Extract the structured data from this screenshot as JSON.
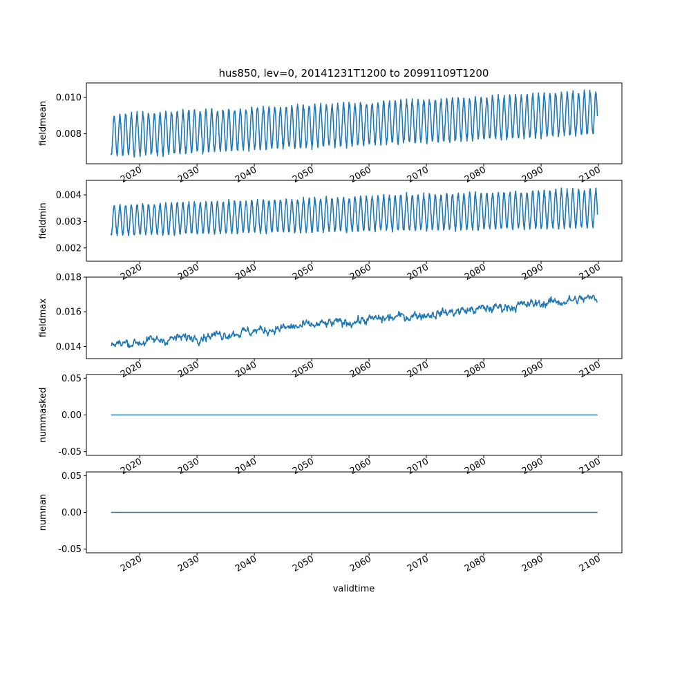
{
  "title": "hus850, lev=0, 20141231T1200 to 20991109T1200",
  "xlabel": "validtime",
  "colors": {
    "line": "#1f77b4",
    "axes": "#000000",
    "background": "#ffffff"
  },
  "chart_data": [
    {
      "type": "line",
      "ylabel": "fieldmean",
      "xlim": [
        2010.7,
        2104.1
      ],
      "ylim": [
        0.00635,
        0.0108
      ],
      "yticks": [
        "0.008",
        "0.010"
      ],
      "ytick_values": [
        0.008,
        0.01
      ],
      "xticks": [
        "2020",
        "2030",
        "2040",
        "2050",
        "2060",
        "2070",
        "2080",
        "2090",
        "2100"
      ],
      "x_range": [
        2015.0,
        2099.85
      ],
      "trend_start_low": 0.0068,
      "trend_end_low": 0.008,
      "trend_start_high": 0.009,
      "trend_end_high": 0.0103,
      "seasonal_cycle": "annual",
      "grid": false
    },
    {
      "type": "line",
      "ylabel": "fieldmin",
      "xlim": [
        2010.7,
        2104.1
      ],
      "ylim": [
        0.0015,
        0.00455
      ],
      "yticks": [
        "0.002",
        "0.003",
        "0.004"
      ],
      "ytick_values": [
        0.002,
        0.003,
        0.004
      ],
      "xticks": [
        "2020",
        "2030",
        "2040",
        "2050",
        "2060",
        "2070",
        "2080",
        "2090",
        "2100"
      ],
      "x_range": [
        2015.0,
        2099.85
      ],
      "trend_start_low": 0.0025,
      "trend_end_low": 0.0028,
      "trend_start_high": 0.0036,
      "trend_end_high": 0.0042,
      "seasonal_cycle": "annual",
      "grid": false
    },
    {
      "type": "line",
      "ylabel": "fieldmax",
      "xlim": [
        2010.7,
        2104.1
      ],
      "ylim": [
        0.0133,
        0.018
      ],
      "yticks": [
        "0.014",
        "0.016",
        "0.018"
      ],
      "ytick_values": [
        0.014,
        0.016,
        0.018
      ],
      "xticks": [
        "2020",
        "2030",
        "2040",
        "2050",
        "2060",
        "2070",
        "2080",
        "2090",
        "2100"
      ],
      "x_range": [
        2015.0,
        2099.85
      ],
      "trend_start": 0.0141,
      "trend_end": 0.0168,
      "grid": false
    },
    {
      "type": "line",
      "ylabel": "nummasked",
      "xlim": [
        2010.7,
        2104.1
      ],
      "ylim": [
        -0.055,
        0.055
      ],
      "yticks": [
        "0.05",
        "0.00",
        "-0.05"
      ],
      "ytick_values": [
        0.05,
        0.0,
        -0.05
      ],
      "xticks": [
        "2020",
        "2030",
        "2040",
        "2050",
        "2060",
        "2070",
        "2080",
        "2090",
        "2100"
      ],
      "x": [
        2015.0,
        2099.85
      ],
      "y": [
        0.0,
        0.0
      ],
      "grid": false
    },
    {
      "type": "line",
      "ylabel": "numnan",
      "xlim": [
        2010.7,
        2104.1
      ],
      "ylim": [
        -0.055,
        0.055
      ],
      "yticks": [
        "0.05",
        "0.00",
        "-0.05"
      ],
      "ytick_values": [
        0.05,
        0.0,
        -0.05
      ],
      "xticks": [
        "2020",
        "2030",
        "2040",
        "2050",
        "2060",
        "2070",
        "2080",
        "2090",
        "2100"
      ],
      "x": [
        2015.0,
        2099.85
      ],
      "y": [
        0.0,
        0.0
      ],
      "grid": false
    }
  ]
}
